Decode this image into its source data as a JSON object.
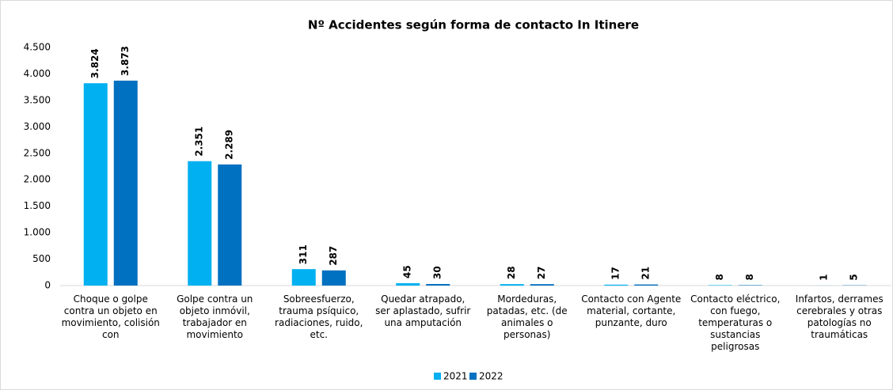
{
  "chart_data": {
    "type": "bar",
    "title": "Nº Accidentes según forma de contacto In Itinere",
    "categories": [
      "Choque o golpe contra un objeto en movimiento, colisión con",
      "Golpe contra un objeto inmóvil, trabajador en movimiento",
      "Sobreesfuerzo, trauma psíquico, radiaciones, ruido, etc.",
      "Quedar atrapado, ser aplastado, sufrir una amputación",
      "Mordeduras, patadas, etc. (de animales o personas)",
      "Contacto con Agente material, cortante, punzante, duro",
      "Contacto eléctrico, con fuego, temperaturas o sustancias peligrosas",
      "Infartos, derrames cerebrales y otras patologías no traumáticas"
    ],
    "series": [
      {
        "name": "2021",
        "color": "#00b0f0",
        "values": [
          3824,
          2351,
          311,
          45,
          28,
          17,
          8,
          1
        ],
        "value_labels": [
          "3.824",
          "2.351",
          "311",
          "45",
          "28",
          "17",
          "8",
          "1"
        ]
      },
      {
        "name": "2022",
        "color": "#0070c0",
        "values": [
          3873,
          2289,
          287,
          30,
          27,
          21,
          8,
          5
        ],
        "value_labels": [
          "3.873",
          "2.289",
          "287",
          "30",
          "27",
          "21",
          "8",
          "5"
        ]
      }
    ],
    "ylim": [
      0,
      4500
    ],
    "yticks": [
      0,
      500,
      {
        "value": 1000,
        "label": "1.000"
      },
      {
        "value": 1500,
        "label": "1.500"
      },
      {
        "value": 2000,
        "label": "2.000"
      },
      {
        "value": 2500,
        "label": "2.500"
      },
      {
        "value": 3000,
        "label": "3.000"
      },
      {
        "value": 3500,
        "label": "3.500"
      },
      {
        "value": 4000,
        "label": "4.000"
      },
      {
        "value": 4500,
        "label": "4.500"
      }
    ],
    "legend": "bottom"
  }
}
